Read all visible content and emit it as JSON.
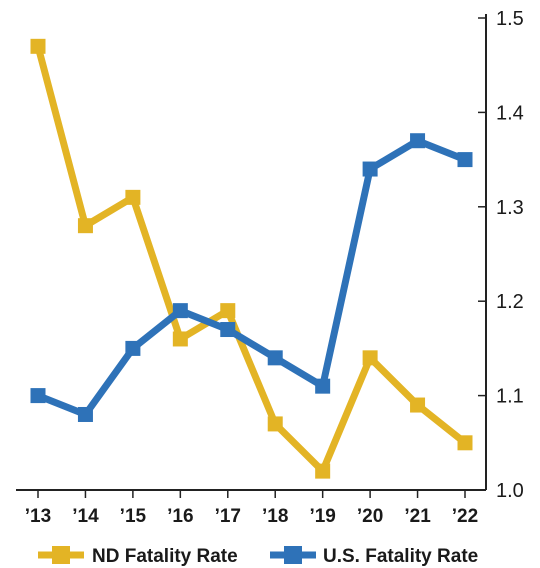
{
  "chart_data": {
    "type": "line",
    "title": "",
    "xlabel": "",
    "ylabel": "",
    "categories": [
      "’13",
      "’14",
      "’15",
      "’16",
      "’17",
      "’18",
      "’19",
      "’20",
      "’21",
      "’22"
    ],
    "ylim": [
      1.0,
      1.5
    ],
    "yticks": [
      "1.0",
      "1.1",
      "1.2",
      "1.3",
      "1.4",
      "1.5"
    ],
    "y_axis_side": "right",
    "grid": false,
    "legend_position": "bottom",
    "series": [
      {
        "name": "ND Fatality Rate",
        "color": "#E3B425",
        "values": [
          1.47,
          1.28,
          1.31,
          1.16,
          1.19,
          1.07,
          1.02,
          1.14,
          1.09,
          1.05
        ]
      },
      {
        "name": "U.S. Fatality Rate",
        "color": "#2E72B8",
        "values": [
          1.1,
          1.08,
          1.15,
          1.19,
          1.17,
          1.14,
          1.11,
          1.34,
          1.37,
          1.35
        ]
      }
    ]
  }
}
